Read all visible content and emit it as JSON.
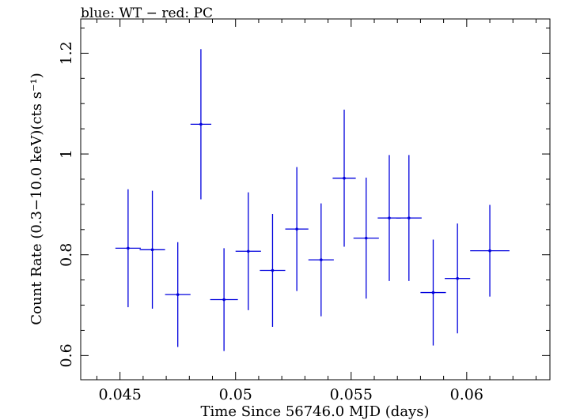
{
  "chart_data": {
    "type": "scatter",
    "title": "blue: WT − red: PC",
    "xlabel": "Time Since 56746.0 MJD (days)",
    "ylabel": "Count Rate (0.3−10.0 keV)(cts s⁻¹)",
    "xlim": [
      0.0433,
      0.0636
    ],
    "ylim": [
      0.552,
      1.268
    ],
    "xticks": [
      0.045,
      0.05,
      0.055,
      0.06
    ],
    "xtick_labels": [
      "0.045",
      "0.05",
      "0.055",
      "0.06"
    ],
    "yticks": [
      0.6,
      0.8,
      1.0,
      1.2
    ],
    "ytick_labels": [
      "0.6",
      "0.8",
      "1",
      "1.2"
    ],
    "grid": false,
    "series": [
      {
        "color": "#0000dd",
        "points": [
          {
            "x": 0.04535,
            "xerr": 0.00055,
            "y": 0.813,
            "yerr": 0.117
          },
          {
            "x": 0.0464,
            "xerr": 0.00055,
            "y": 0.81,
            "yerr": 0.117
          },
          {
            "x": 0.0475,
            "xerr": 0.00055,
            "y": 0.721,
            "yerr": 0.104
          },
          {
            "x": 0.0485,
            "xerr": 0.00045,
            "y": 1.059,
            "yerr": 0.149
          },
          {
            "x": 0.0495,
            "xerr": 0.0006,
            "y": 0.711,
            "yerr": 0.102
          },
          {
            "x": 0.05055,
            "xerr": 0.00055,
            "y": 0.807,
            "yerr": 0.117
          },
          {
            "x": 0.0516,
            "xerr": 0.00055,
            "y": 0.769,
            "yerr": 0.112
          },
          {
            "x": 0.05265,
            "xerr": 0.0005,
            "y": 0.851,
            "yerr": 0.123
          },
          {
            "x": 0.0537,
            "xerr": 0.00055,
            "y": 0.79,
            "yerr": 0.112
          },
          {
            "x": 0.0547,
            "xerr": 0.0005,
            "y": 0.952,
            "yerr": 0.136
          },
          {
            "x": 0.05565,
            "xerr": 0.00055,
            "y": 0.833,
            "yerr": 0.12
          },
          {
            "x": 0.05665,
            "xerr": 0.0005,
            "y": 0.873,
            "yerr": 0.125
          },
          {
            "x": 0.0575,
            "xerr": 0.00055,
            "y": 0.873,
            "yerr": 0.125
          },
          {
            "x": 0.05855,
            "xerr": 0.00055,
            "y": 0.725,
            "yerr": 0.105
          },
          {
            "x": 0.0596,
            "xerr": 0.00055,
            "y": 0.753,
            "yerr": 0.109
          },
          {
            "x": 0.061,
            "xerr": 0.00085,
            "y": 0.808,
            "yerr": 0.091
          }
        ]
      }
    ]
  }
}
